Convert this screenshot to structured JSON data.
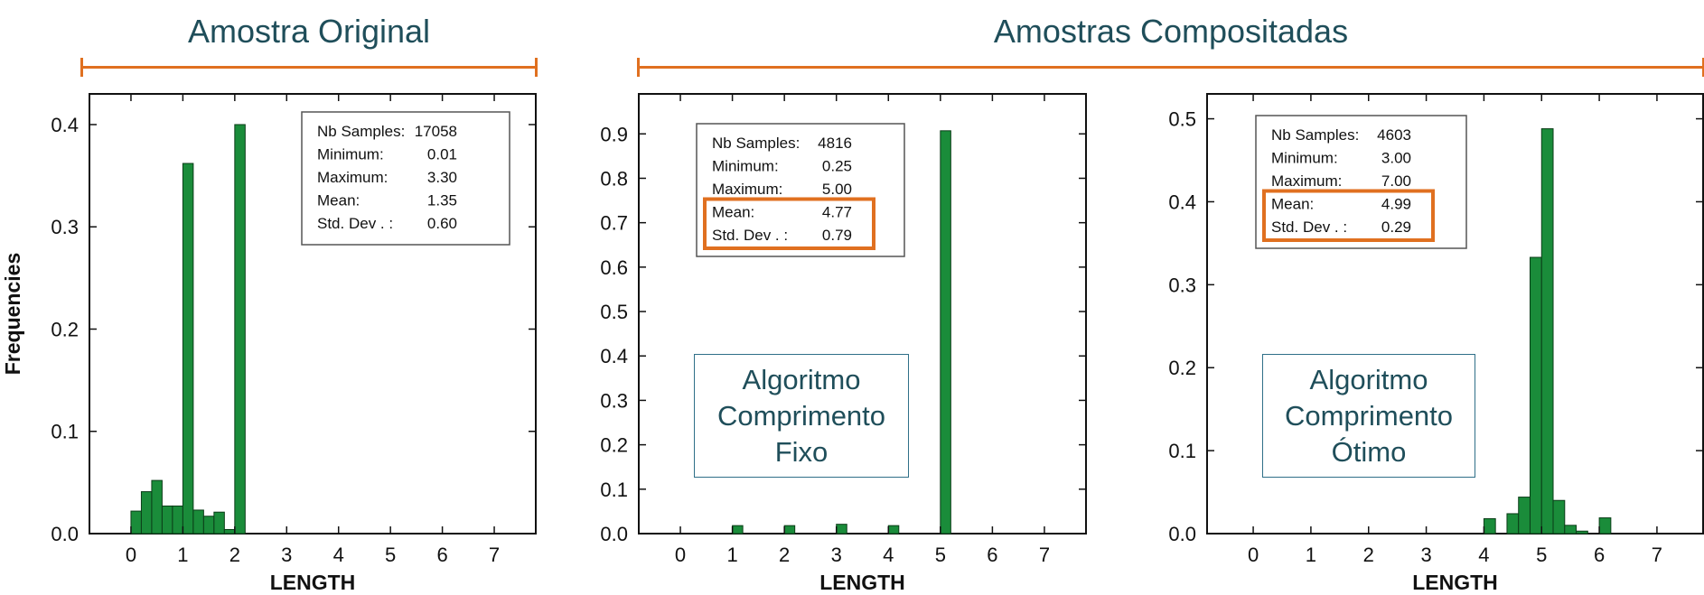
{
  "headers": {
    "original": "Amostra Original",
    "composited": "Amostras Compositadas"
  },
  "colors": {
    "bar": "#1a8c3a",
    "bar_stroke": "#0b3d18",
    "bracket": "#e07020",
    "highlight": "#e07020",
    "title_text": "#1f4e5a"
  },
  "algo_boxes": {
    "fixed": [
      "Algoritmo",
      "Comprimento",
      "Fixo"
    ],
    "optimal": [
      "Algoritmo",
      "Comprimento",
      "Ótimo"
    ]
  },
  "chart_data": [
    {
      "type": "bar",
      "xlabel": "LENGTH",
      "ylabel": "Frequencies",
      "xlim": [
        -0.8,
        7.8
      ],
      "ylim": [
        0,
        0.43
      ],
      "xticks": [
        0,
        1,
        2,
        3,
        4,
        5,
        6,
        7
      ],
      "yticks": [
        0.0,
        0.1,
        0.2,
        0.3,
        0.4
      ],
      "ytick_labels": [
        "0.0",
        "0.1",
        "0.2",
        "0.3",
        "0.4"
      ],
      "bar_width": 0.2,
      "bars": [
        {
          "x": 0.1,
          "y": 0.022
        },
        {
          "x": 0.3,
          "y": 0.041
        },
        {
          "x": 0.5,
          "y": 0.052
        },
        {
          "x": 0.7,
          "y": 0.027
        },
        {
          "x": 0.9,
          "y": 0.027
        },
        {
          "x": 1.1,
          "y": 0.362
        },
        {
          "x": 1.3,
          "y": 0.023
        },
        {
          "x": 1.5,
          "y": 0.017
        },
        {
          "x": 1.7,
          "y": 0.021
        },
        {
          "x": 1.9,
          "y": 0.004
        },
        {
          "x": 2.1,
          "y": 0.4
        }
      ],
      "stats": [
        {
          "label": "Nb Samples:",
          "value": "17058"
        },
        {
          "label": "Minimum:",
          "value": "0.01"
        },
        {
          "label": "Maximum:",
          "value": "3.30"
        },
        {
          "label": "Mean:",
          "value": "1.35"
        },
        {
          "label": "Std.   Dev . :",
          "value": "0.60"
        }
      ],
      "highlight_rows": []
    },
    {
      "type": "bar",
      "xlabel": "LENGTH",
      "ylabel": "",
      "xlim": [
        -0.8,
        7.8
      ],
      "ylim": [
        0,
        0.99
      ],
      "xticks": [
        0,
        1,
        2,
        3,
        4,
        5,
        6,
        7
      ],
      "yticks": [
        0.0,
        0.1,
        0.2,
        0.3,
        0.4,
        0.5,
        0.6,
        0.7,
        0.8,
        0.9
      ],
      "ytick_labels": [
        "0.0",
        "0.1",
        "0.2",
        "0.3",
        "0.4",
        "0.5",
        "0.6",
        "0.7",
        "0.8",
        "0.9"
      ],
      "bar_width": 0.2,
      "bars": [
        {
          "x": 1.1,
          "y": 0.018
        },
        {
          "x": 2.1,
          "y": 0.018
        },
        {
          "x": 3.1,
          "y": 0.021
        },
        {
          "x": 4.1,
          "y": 0.018
        },
        {
          "x": 5.1,
          "y": 0.907
        }
      ],
      "stats": [
        {
          "label": "Nb Samples:",
          "value": "4816"
        },
        {
          "label": "Minimum:",
          "value": "0.25"
        },
        {
          "label": "Maximum:",
          "value": "5.00"
        },
        {
          "label": "Mean:",
          "value": "4.77"
        },
        {
          "label": "Std.   Dev . :",
          "value": "0.79"
        }
      ],
      "highlight_rows": [
        3,
        4
      ]
    },
    {
      "type": "bar",
      "xlabel": "LENGTH",
      "ylabel": "",
      "xlim": [
        -0.8,
        7.8
      ],
      "ylim": [
        0,
        0.53
      ],
      "xticks": [
        0,
        1,
        2,
        3,
        4,
        5,
        6,
        7
      ],
      "yticks": [
        0.0,
        0.1,
        0.2,
        0.3,
        0.4,
        0.5
      ],
      "ytick_labels": [
        "0.0",
        "0.1",
        "0.2",
        "0.3",
        "0.4",
        "0.5"
      ],
      "bar_width": 0.2,
      "bars": [
        {
          "x": 4.1,
          "y": 0.018
        },
        {
          "x": 4.5,
          "y": 0.024
        },
        {
          "x": 4.7,
          "y": 0.044
        },
        {
          "x": 4.9,
          "y": 0.333
        },
        {
          "x": 5.1,
          "y": 0.488
        },
        {
          "x": 5.3,
          "y": 0.04
        },
        {
          "x": 5.5,
          "y": 0.01
        },
        {
          "x": 5.7,
          "y": 0.003
        },
        {
          "x": 6.1,
          "y": 0.019
        }
      ],
      "stats": [
        {
          "label": "Nb Samples:",
          "value": "4603"
        },
        {
          "label": "Minimum:",
          "value": "3.00"
        },
        {
          "label": "Maximum:",
          "value": "7.00"
        },
        {
          "label": "Mean:",
          "value": "4.99"
        },
        {
          "label": "Std.   Dev . :",
          "value": "0.29"
        }
      ],
      "highlight_rows": [
        3,
        4
      ]
    }
  ]
}
